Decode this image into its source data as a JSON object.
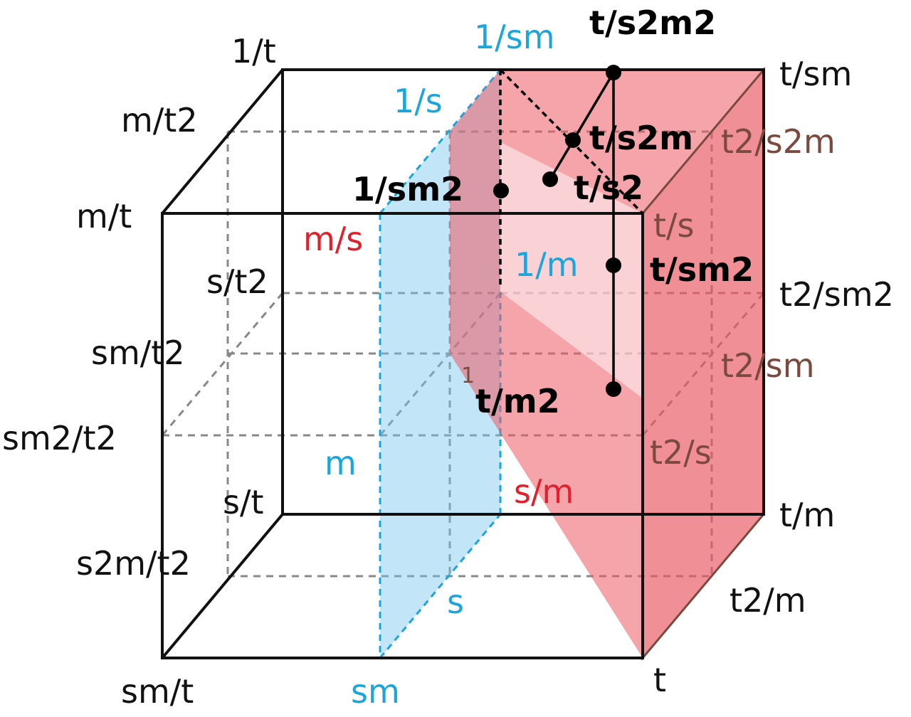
{
  "corner_labels": [
    "1/t",
    "m/t2",
    "m/t",
    "s/t2",
    "sm/t2",
    "sm2/t2",
    "s/t",
    "s2m/t2",
    "sm/t",
    "t",
    "t2/m",
    "t/m",
    "t2/sm2",
    "t/sm"
  ],
  "blue_labels": [
    "1/sm",
    "1/s",
    "1/m",
    "m",
    "s",
    "sm"
  ],
  "red_labels": [
    "m/s",
    "s/m"
  ],
  "brown_labels": [
    "t2/s2m",
    "t/s",
    "t2/sm",
    "t2/s",
    "1"
  ],
  "point_labels": [
    "t/s2m2",
    "t/s2m",
    "t/s2",
    "1/sm2",
    "t/sm2",
    "t/m2"
  ]
}
